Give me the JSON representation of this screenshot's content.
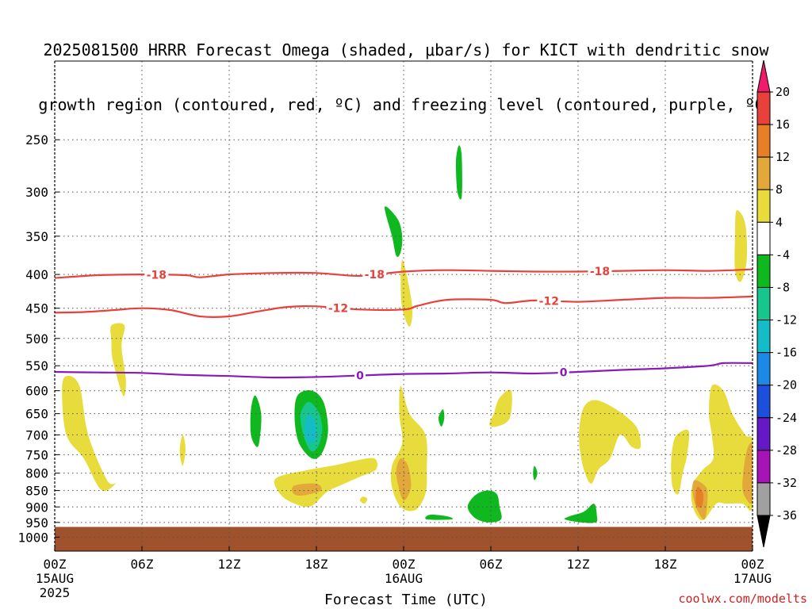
{
  "title_line1": "2025081500 HRRR Forecast Omega (shaded, μbar/s) for KICT with dendritic snow",
  "title_line2": "growth region (contoured, red, ºC) and freezing level (contoured, purple, ºC)",
  "credit": "coolwx.com/modelts",
  "chart_data": {
    "type": "heatmap",
    "xlabel": "Forecast Time (UTC)",
    "x_hours_range": [
      0,
      48
    ],
    "x_ticks": [
      {
        "hour": 0,
        "label": "00Z",
        "sub1": "15AUG",
        "sub2": "2025"
      },
      {
        "hour": 6,
        "label": "06Z",
        "sub1": "",
        "sub2": ""
      },
      {
        "hour": 12,
        "label": "12Z",
        "sub1": "",
        "sub2": ""
      },
      {
        "hour": 18,
        "label": "18Z",
        "sub1": "",
        "sub2": ""
      },
      {
        "hour": 24,
        "label": "00Z",
        "sub1": "16AUG",
        "sub2": ""
      },
      {
        "hour": 30,
        "label": "06Z",
        "sub1": "",
        "sub2": ""
      },
      {
        "hour": 36,
        "label": "12Z",
        "sub1": "",
        "sub2": ""
      },
      {
        "hour": 42,
        "label": "18Z",
        "sub1": "",
        "sub2": ""
      },
      {
        "hour": 48,
        "label": "00Z",
        "sub1": "17AUG",
        "sub2": ""
      }
    ],
    "y_pressure_range_hPa": [
      1050,
      190
    ],
    "y_scale": "log",
    "y_ticks": [
      250,
      300,
      350,
      400,
      450,
      500,
      550,
      600,
      650,
      700,
      750,
      800,
      850,
      900,
      950,
      1000
    ],
    "grid": true,
    "surface_pressure_hPa": 965,
    "colorbar": {
      "labels": [
        "20",
        "16",
        "12",
        "8",
        "4",
        "-4",
        "-8",
        "-12",
        "-16",
        "-20",
        "-24",
        "-28",
        "-32",
        "-36"
      ],
      "colors": [
        "#ee1c6a",
        "#e8413c",
        "#e77f27",
        "#e3a83a",
        "#e7dc3c",
        "#ffffff",
        "#0fb81f",
        "#16c68c",
        "#14bcc8",
        "#1a8ae6",
        "#1c4fdc",
        "#6418c6",
        "#a614b8",
        "#a0a0a0",
        "#000000"
      ]
    },
    "contours": [
      {
        "kind": "dendritic",
        "label": "-18",
        "color": "#e8413c",
        "points": [
          [
            0,
            405
          ],
          [
            3,
            401
          ],
          [
            6,
            400
          ],
          [
            9,
            401
          ],
          [
            10,
            404
          ],
          [
            12,
            400
          ],
          [
            15,
            398
          ],
          [
            18,
            398
          ],
          [
            21,
            402
          ],
          [
            24,
            396
          ],
          [
            27,
            394
          ],
          [
            30,
            395
          ],
          [
            33,
            396
          ],
          [
            36,
            396
          ],
          [
            39,
            395
          ],
          [
            42,
            394
          ],
          [
            45,
            395
          ],
          [
            48,
            393
          ]
        ],
        "label_hours": [
          7,
          22,
          37.5
        ]
      },
      {
        "kind": "dendritic",
        "label": "-12",
        "color": "#e8413c",
        "points": [
          [
            0,
            457
          ],
          [
            2,
            456
          ],
          [
            4,
            453
          ],
          [
            6,
            450
          ],
          [
            8,
            453
          ],
          [
            10,
            463
          ],
          [
            12,
            463
          ],
          [
            14,
            455
          ],
          [
            16,
            448
          ],
          [
            18,
            447
          ],
          [
            21,
            452
          ],
          [
            24,
            452
          ],
          [
            25,
            446
          ],
          [
            27,
            437
          ],
          [
            30,
            437
          ],
          [
            31,
            442
          ],
          [
            33,
            438
          ],
          [
            36,
            440
          ],
          [
            39,
            437
          ],
          [
            42,
            434
          ],
          [
            45,
            434
          ],
          [
            48,
            432
          ]
        ],
        "label_hours": [
          19.5,
          34
        ]
      },
      {
        "kind": "freezing",
        "label": "0",
        "color": "#8a1ab8",
        "points": [
          [
            0,
            562
          ],
          [
            3,
            563
          ],
          [
            6,
            564
          ],
          [
            9,
            568
          ],
          [
            12,
            570
          ],
          [
            15,
            573
          ],
          [
            18,
            572
          ],
          [
            21,
            569
          ],
          [
            24,
            566
          ],
          [
            27,
            565
          ],
          [
            30,
            563
          ],
          [
            33,
            565
          ],
          [
            36,
            562
          ],
          [
            39,
            558
          ],
          [
            42,
            555
          ],
          [
            45,
            550
          ],
          [
            46,
            545
          ],
          [
            48,
            545
          ]
        ],
        "label_hours": [
          21,
          35
        ]
      }
    ],
    "omega_areas": [
      {
        "color": "#e7dc3c",
        "points": [
          [
            0.8,
            570
          ],
          [
            1.7,
            590
          ],
          [
            2.3,
            700
          ],
          [
            3.6,
            820
          ],
          [
            4.2,
            828
          ],
          [
            3.2,
            848
          ],
          [
            2.0,
            760
          ],
          [
            0.8,
            700
          ],
          [
            0.5,
            600
          ]
        ]
      },
      {
        "color": "#e7dc3c",
        "points": [
          [
            3.9,
            478
          ],
          [
            4.8,
            478
          ],
          [
            4.6,
            515
          ],
          [
            4.9,
            578
          ],
          [
            4.7,
            610
          ],
          [
            4.0,
            540
          ],
          [
            3.9,
            505
          ]
        ]
      },
      {
        "color": "#e7dc3c",
        "points": [
          [
            8.8,
            700
          ],
          [
            9.0,
            735
          ],
          [
            8.8,
            780
          ],
          [
            8.6,
            740
          ]
        ]
      },
      {
        "color": "#0fb81f",
        "points": [
          [
            13.8,
            610
          ],
          [
            14.2,
            650
          ],
          [
            14.1,
            710
          ],
          [
            13.9,
            730
          ],
          [
            13.5,
            700
          ],
          [
            13.5,
            640
          ]
        ]
      },
      {
        "color": "#0fb81f",
        "points": [
          [
            17.7,
            600
          ],
          [
            18.5,
            625
          ],
          [
            18.8,
            690
          ],
          [
            18.4,
            745
          ],
          [
            17.7,
            760
          ],
          [
            16.8,
            720
          ],
          [
            16.5,
            660
          ],
          [
            16.7,
            610
          ]
        ]
      },
      {
        "color": "#16c68c",
        "points": [
          [
            17.6,
            625
          ],
          [
            18.2,
            650
          ],
          [
            18.4,
            690
          ],
          [
            18.1,
            730
          ],
          [
            17.6,
            740
          ],
          [
            17.1,
            700
          ],
          [
            16.9,
            655
          ],
          [
            17.2,
            630
          ]
        ]
      },
      {
        "color": "#14bcc8",
        "points": [
          [
            17.5,
            650
          ],
          [
            17.9,
            670
          ],
          [
            18.0,
            700
          ],
          [
            17.7,
            720
          ],
          [
            17.3,
            710
          ],
          [
            17.2,
            680
          ]
        ]
      },
      {
        "color": "#e7dc3c",
        "points": [
          [
            15.2,
            815
          ],
          [
            17.3,
            792
          ],
          [
            19.3,
            778
          ],
          [
            20.8,
            765
          ],
          [
            22.0,
            760
          ],
          [
            22.1,
            790
          ],
          [
            21.0,
            810
          ],
          [
            19.8,
            832
          ],
          [
            18.7,
            855
          ],
          [
            17.6,
            898
          ],
          [
            16.4,
            888
          ],
          [
            15.5,
            860
          ]
        ]
      },
      {
        "color": "#e3a83a",
        "points": [
          [
            16.5,
            835
          ],
          [
            18.0,
            830
          ],
          [
            18.3,
            850
          ],
          [
            17.0,
            865
          ],
          [
            16.4,
            858
          ]
        ]
      },
      {
        "color": "#e7dc3c",
        "points": [
          [
            21.2,
            868
          ],
          [
            21.5,
            875
          ],
          [
            21.3,
            890
          ],
          [
            21.0,
            880
          ]
        ]
      },
      {
        "color": "#e7dc3c",
        "points": [
          [
            23.9,
            380
          ],
          [
            24.2,
            400
          ],
          [
            24.6,
            450
          ],
          [
            24.4,
            480
          ],
          [
            23.9,
            450
          ],
          [
            23.8,
            410
          ]
        ]
      },
      {
        "color": "#0fb81f",
        "points": [
          [
            22.7,
            316
          ],
          [
            23.6,
            330
          ],
          [
            23.9,
            350
          ],
          [
            23.8,
            370
          ],
          [
            23.5,
            375
          ],
          [
            23.2,
            350
          ]
        ]
      },
      {
        "color": "#0fb81f",
        "points": [
          [
            27.8,
            255
          ],
          [
            28.0,
            265
          ],
          [
            28.0,
            305
          ],
          [
            27.7,
            300
          ],
          [
            27.6,
            270
          ]
        ]
      },
      {
        "color": "#e7dc3c",
        "points": [
          [
            23.8,
            590
          ],
          [
            24.4,
            650
          ],
          [
            25.5,
            700
          ],
          [
            25.6,
            790
          ],
          [
            25.5,
            860
          ],
          [
            24.8,
            910
          ],
          [
            23.8,
            900
          ],
          [
            23.2,
            840
          ],
          [
            23.2,
            780
          ],
          [
            23.9,
            720
          ],
          [
            23.7,
            650
          ]
        ]
      },
      {
        "color": "#e3a83a",
        "points": [
          [
            23.8,
            760
          ],
          [
            24.3,
            780
          ],
          [
            24.5,
            840
          ],
          [
            24.0,
            880
          ],
          [
            23.6,
            830
          ],
          [
            23.5,
            790
          ]
        ]
      },
      {
        "color": "#0fb81f",
        "points": [
          [
            26.7,
            640
          ],
          [
            26.8,
            660
          ],
          [
            26.6,
            680
          ],
          [
            26.4,
            660
          ]
        ]
      },
      {
        "color": "#e7dc3c",
        "points": [
          [
            30.6,
            615
          ],
          [
            31.4,
            600
          ],
          [
            31.3,
            660
          ],
          [
            30.4,
            680
          ],
          [
            29.9,
            675
          ],
          [
            30.2,
            650
          ]
        ]
      },
      {
        "color": "#0fb81f",
        "points": [
          [
            33.0,
            780
          ],
          [
            33.2,
            800
          ],
          [
            33.0,
            820
          ],
          [
            32.9,
            800
          ]
        ]
      },
      {
        "color": "#0fb81f",
        "points": [
          [
            25.8,
            925
          ],
          [
            27.0,
            930
          ],
          [
            27.3,
            940
          ],
          [
            25.6,
            940
          ]
        ]
      },
      {
        "color": "#0fb81f",
        "points": [
          [
            28.9,
            865
          ],
          [
            29.7,
            850
          ],
          [
            30.4,
            860
          ],
          [
            30.6,
            900
          ],
          [
            30.7,
            940
          ],
          [
            29.8,
            950
          ],
          [
            28.9,
            935
          ],
          [
            28.4,
            900
          ]
        ]
      },
      {
        "color": "#e7dc3c",
        "points": [
          [
            36.4,
            635
          ],
          [
            37.2,
            620
          ],
          [
            38.6,
            640
          ],
          [
            40.0,
            680
          ],
          [
            40.3,
            730
          ],
          [
            39.7,
            730
          ],
          [
            38.9,
            700
          ],
          [
            38.2,
            760
          ],
          [
            37.4,
            790
          ],
          [
            36.9,
            830
          ],
          [
            36.4,
            790
          ],
          [
            36.1,
            730
          ],
          [
            36.1,
            680
          ]
        ]
      },
      {
        "color": "#0fb81f",
        "points": [
          [
            35.4,
            930
          ],
          [
            36.4,
            915
          ],
          [
            37.1,
            890
          ],
          [
            37.3,
            930
          ],
          [
            37.2,
            950
          ],
          [
            36.2,
            950
          ],
          [
            35.1,
            940
          ]
        ]
      },
      {
        "color": "#e7dc3c",
        "points": [
          [
            42.5,
            730
          ],
          [
            42.8,
            700
          ],
          [
            43.6,
            690
          ],
          [
            43.5,
            750
          ],
          [
            43.2,
            800
          ],
          [
            42.9,
            860
          ],
          [
            42.5,
            840
          ],
          [
            42.4,
            780
          ]
        ]
      },
      {
        "color": "#e7dc3c",
        "points": [
          [
            45.2,
            590
          ],
          [
            46.0,
            600
          ],
          [
            46.6,
            650
          ],
          [
            47.5,
            700
          ],
          [
            48.0,
            720
          ],
          [
            48.0,
            900
          ],
          [
            47.3,
            890
          ],
          [
            46.2,
            890
          ],
          [
            45.5,
            890
          ],
          [
            44.7,
            940
          ],
          [
            44.2,
            930
          ],
          [
            43.8,
            880
          ],
          [
            43.9,
            830
          ],
          [
            44.6,
            790
          ],
          [
            45.3,
            760
          ],
          [
            45.2,
            700
          ],
          [
            45.0,
            650
          ]
        ]
      },
      {
        "color": "#e3a83a",
        "points": [
          [
            44.0,
            820
          ],
          [
            44.8,
            840
          ],
          [
            44.9,
            880
          ],
          [
            44.7,
            940
          ],
          [
            44.2,
            910
          ],
          [
            43.9,
            860
          ]
        ]
      },
      {
        "color": "#e77f27",
        "points": [
          [
            44.2,
            840
          ],
          [
            44.6,
            860
          ],
          [
            44.5,
            900
          ],
          [
            44.1,
            890
          ]
        ]
      },
      {
        "color": "#e3a83a",
        "points": [
          [
            47.6,
            740
          ],
          [
            48.0,
            730
          ],
          [
            48.0,
            880
          ],
          [
            47.5,
            870
          ],
          [
            47.3,
            830
          ]
        ]
      },
      {
        "color": "#e7dc3c",
        "points": [
          [
            46.9,
            320
          ],
          [
            47.5,
            335
          ],
          [
            47.6,
            380
          ],
          [
            47.2,
            410
          ],
          [
            46.8,
            395
          ],
          [
            46.8,
            350
          ]
        ]
      }
    ]
  }
}
